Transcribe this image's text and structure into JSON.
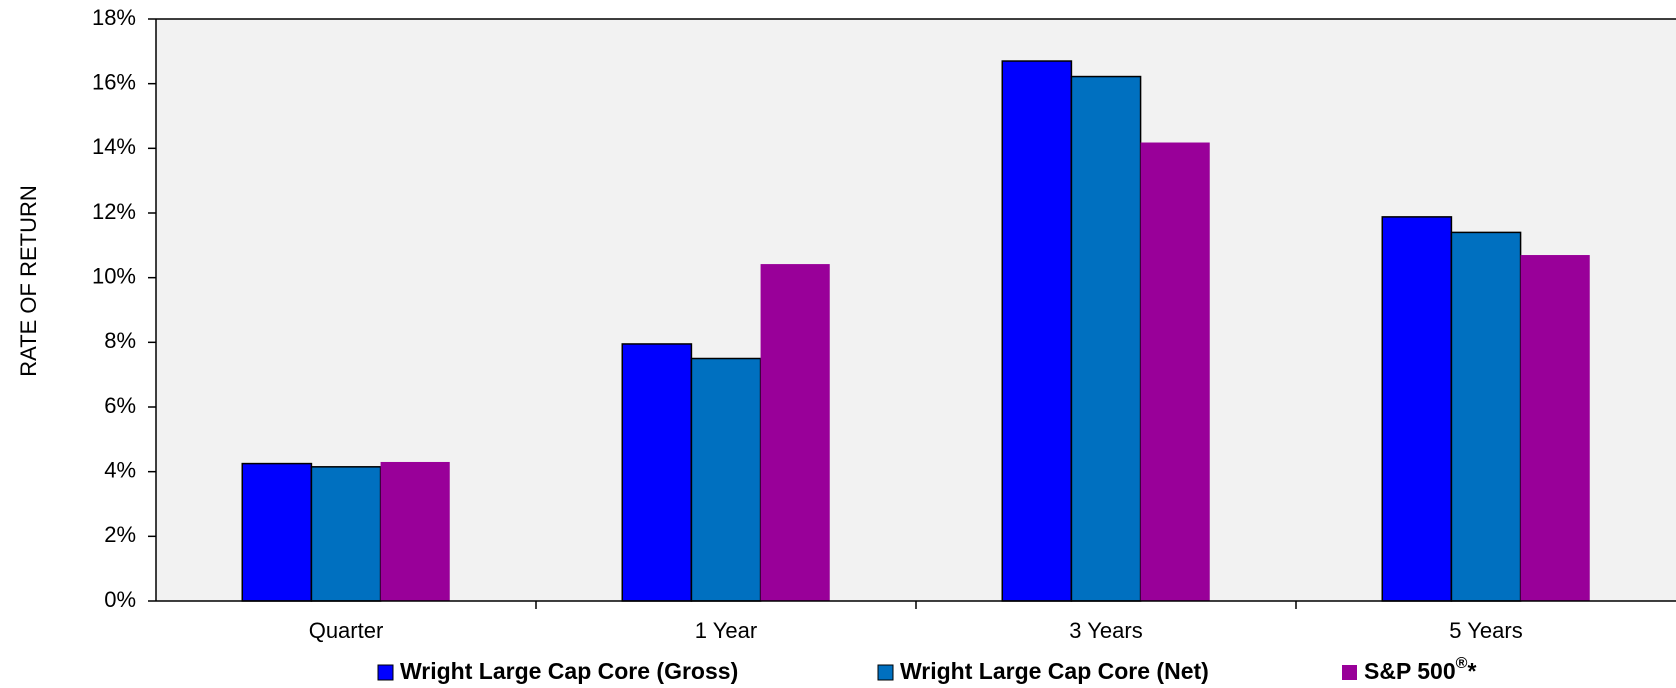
{
  "chart_data": {
    "type": "bar",
    "ylabel": "RATE OF RETURN",
    "xlabel": "",
    "ylim": [
      0,
      18
    ],
    "y_tick_labels": [
      "0%",
      "2%",
      "4%",
      "6%",
      "8%",
      "10%",
      "12%",
      "14%",
      "16%",
      "18%"
    ],
    "categories": [
      "Quarter",
      "1 Year",
      "3 Years",
      "5 Years"
    ],
    "series": [
      {
        "name": "Wright Large Cap Core (Gross)",
        "color": "#0000ff",
        "values": [
          4.25,
          7.95,
          16.7,
          11.88
        ]
      },
      {
        "name": "Wright Large Cap Core (Net)",
        "color": "#0070c0",
        "values": [
          4.15,
          7.5,
          16.22,
          11.4
        ]
      },
      {
        "name": "S&P 500",
        "superscript": "®",
        "suffix": "*",
        "color": "#990099",
        "values": [
          4.3,
          10.42,
          14.18,
          10.7
        ]
      }
    ],
    "grid": false,
    "plot_background": "#f2f2f2",
    "legend_position": "bottom"
  }
}
